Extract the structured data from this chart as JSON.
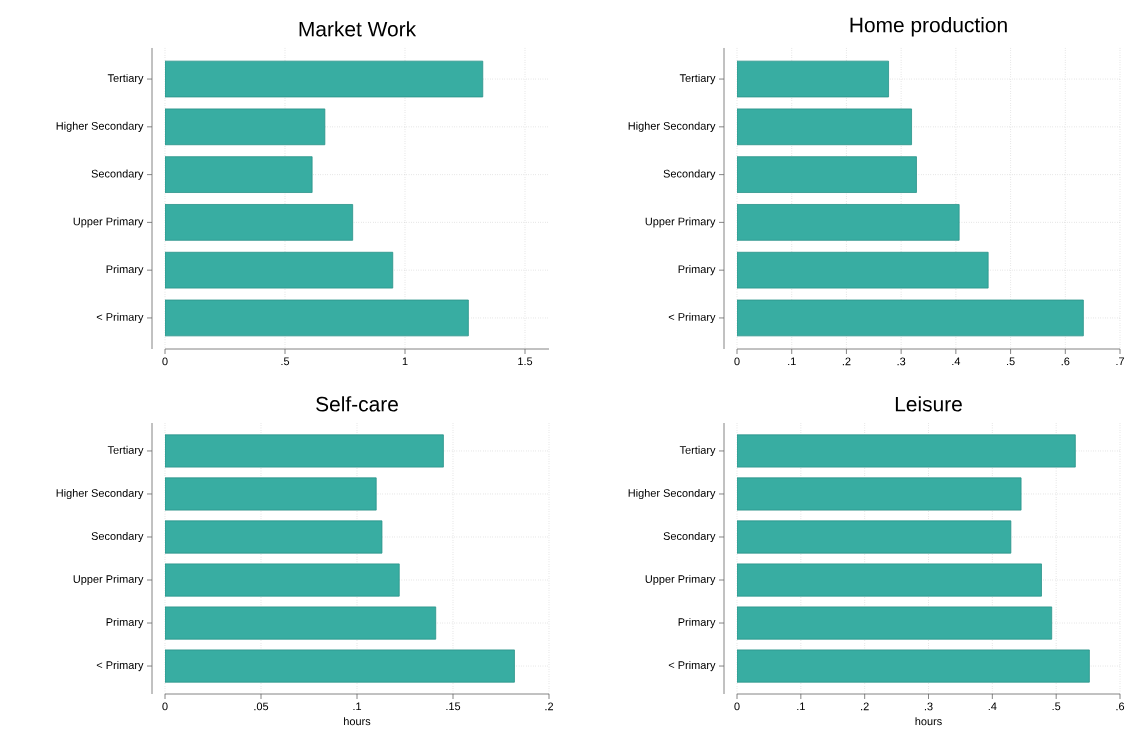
{
  "chart_data": [
    {
      "type": "bar",
      "orientation": "horizontal",
      "title": "Market Work",
      "categories": [
        "Tertiary",
        "Higher Secondary",
        "Secondary",
        "Upper Primary",
        "Primary",
        "< Primary"
      ],
      "values": [
        1.324,
        0.666,
        0.613,
        0.782,
        0.949,
        1.264
      ],
      "color": "#38ada2",
      "xlim": [
        0,
        1.6
      ],
      "xticks": [
        0,
        {
          "value": 0.5,
          "label": ".5"
        },
        1,
        {
          "value": 1.5,
          "label": "1.5"
        }
      ],
      "grid": true
    },
    {
      "type": "bar",
      "orientation": "horizontal",
      "title": "Home production",
      "categories": [
        "Tertiary",
        "Higher Secondary",
        "Secondary",
        "Upper Primary",
        "Primary",
        "< Primary"
      ],
      "values": [
        0.277,
        0.319,
        0.328,
        0.406,
        0.459,
        0.633
      ],
      "color": "#38ada2",
      "xlim": [
        0,
        0.7
      ],
      "xticks": [
        0,
        {
          "value": 0.1,
          "label": ".1"
        },
        {
          "value": 0.2,
          "label": ".2"
        },
        {
          "value": 0.3,
          "label": ".3"
        },
        {
          "value": 0.4,
          "label": ".4"
        },
        {
          "value": 0.5,
          "label": ".5"
        },
        {
          "value": 0.6,
          "label": ".6"
        },
        {
          "value": 0.7,
          "label": ".7"
        }
      ],
      "grid": true
    },
    {
      "type": "bar",
      "orientation": "horizontal",
      "title": "Self-care",
      "xlabel": "hours",
      "categories": [
        "Tertiary",
        "Higher Secondary",
        "Secondary",
        "Upper Primary",
        "Primary",
        "< Primary"
      ],
      "values": [
        0.145,
        0.11,
        0.113,
        0.122,
        0.141,
        0.182
      ],
      "color": "#38ada2",
      "xlim": [
        0,
        0.2
      ],
      "xticks": [
        0,
        {
          "value": 0.05,
          "label": ".05"
        },
        {
          "value": 0.1,
          "label": ".1"
        },
        {
          "value": 0.15,
          "label": ".15"
        },
        {
          "value": 0.2,
          "label": ".2"
        }
      ],
      "grid": true
    },
    {
      "type": "bar",
      "orientation": "horizontal",
      "title": "Leisure",
      "xlabel": "hours",
      "categories": [
        "Tertiary",
        "Higher Secondary",
        "Secondary",
        "Upper Primary",
        "Primary",
        "< Primary"
      ],
      "values": [
        0.53,
        0.445,
        0.429,
        0.477,
        0.493,
        0.552
      ],
      "color": "#38ada2",
      "xlim": [
        0,
        0.6
      ],
      "xticks": [
        0,
        {
          "value": 0.1,
          "label": ".1"
        },
        {
          "value": 0.2,
          "label": ".2"
        },
        {
          "value": 0.3,
          "label": ".3"
        },
        {
          "value": 0.4,
          "label": ".4"
        },
        {
          "value": 0.5,
          "label": ".5"
        },
        {
          "value": 0.6,
          "label": ".6"
        }
      ],
      "grid": true
    }
  ]
}
